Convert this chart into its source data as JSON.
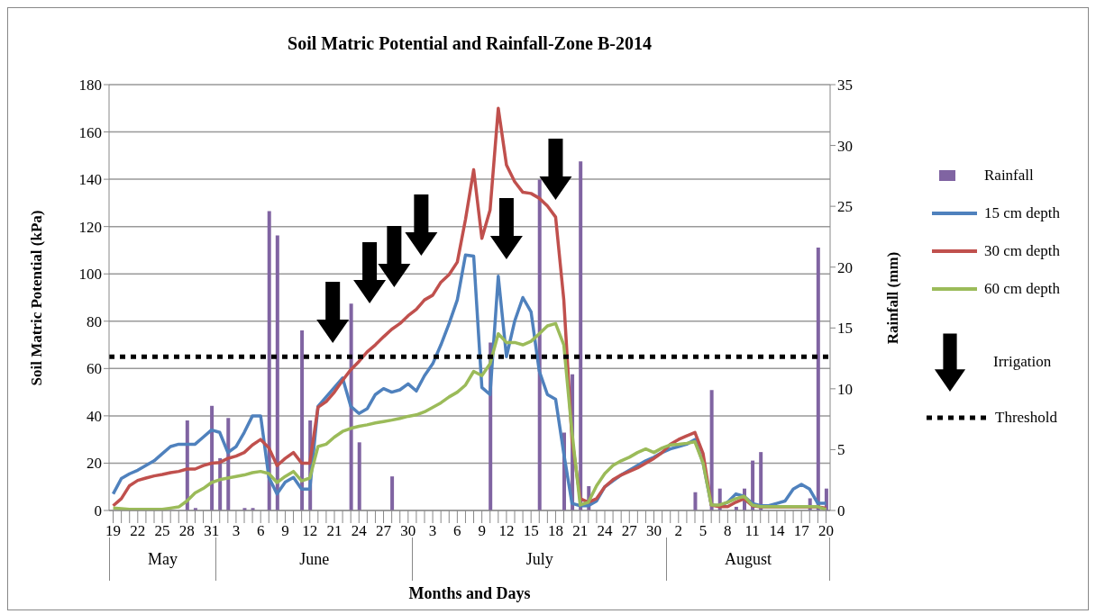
{
  "chart_data": {
    "type": "line",
    "title": "Soil Matric Potential and Rainfall-Zone B-2014",
    "xlabel": "Months and Days",
    "ylabel": "Soil Matric Potential (kPa)",
    "y2label": "Rainfall (mm)",
    "categories": [
      "19",
      null,
      null,
      "22",
      null,
      null,
      "25",
      null,
      null,
      "28",
      null,
      null,
      "31",
      null,
      null,
      "3",
      null,
      null,
      "6",
      null,
      null,
      "9",
      null,
      null,
      "12",
      null,
      null,
      "21",
      null,
      null,
      "24",
      null,
      null,
      "27",
      null,
      null,
      "30",
      null,
      null,
      "3",
      null,
      null,
      "6",
      null,
      null,
      "9",
      null,
      null,
      "12",
      null,
      null,
      "15",
      null,
      null,
      "18",
      null,
      null,
      "21",
      null,
      null,
      "24",
      null,
      null,
      "27",
      null,
      null,
      "30",
      null,
      null,
      "2",
      null,
      null,
      "5",
      null,
      null,
      "8",
      null,
      null,
      "11",
      null,
      null,
      "14",
      null,
      null,
      "17",
      null,
      null,
      "20"
    ],
    "series": [
      {
        "name": "Rainfall",
        "type": "bar",
        "axis": "y2",
        "color": "#8064a2",
        "values": [
          0,
          0,
          0,
          0,
          0,
          0,
          0,
          0,
          0,
          7.4,
          0.2,
          0,
          8.6,
          4.3,
          7.6,
          0,
          0.2,
          0.2,
          0,
          24.6,
          22.6,
          0,
          0,
          14.8,
          7.4,
          0,
          0,
          0,
          0,
          17,
          5.6,
          0,
          0,
          0,
          2.8,
          0,
          0,
          0,
          0,
          0,
          0,
          0,
          0,
          0,
          0,
          0,
          13.8,
          0,
          0,
          0,
          0,
          0,
          27.2,
          0,
          0,
          6.4,
          11.2,
          28.7,
          2,
          0,
          0,
          0,
          0,
          0,
          0,
          0,
          0,
          0,
          0,
          0,
          0,
          1.5,
          0,
          9.9,
          1.8,
          0,
          0.3,
          1.8,
          4.1,
          4.8,
          0,
          0,
          0,
          0,
          0,
          1,
          21.6,
          1.8
        ]
      },
      {
        "name": "15 cm depth",
        "color": "#4f81bd",
        "values": [
          7,
          13.5,
          15.5,
          17,
          19,
          21,
          24,
          27,
          28,
          28,
          28,
          31,
          34,
          33,
          24.5,
          27,
          33,
          40,
          40,
          14,
          7,
          12,
          14,
          9,
          9,
          44,
          48,
          52,
          56,
          44,
          41,
          43,
          49,
          51.5,
          50,
          51,
          53.5,
          50.5,
          57,
          62,
          70,
          79,
          89,
          108,
          107.5,
          52,
          49,
          99,
          65,
          80,
          90,
          84,
          59,
          49,
          47,
          24,
          3,
          2,
          2,
          4,
          10,
          12.5,
          15,
          17,
          19,
          21,
          22.5,
          24.5,
          26,
          27,
          28,
          30,
          20,
          2.3,
          2,
          3.5,
          7,
          6,
          3,
          2,
          2,
          3,
          4,
          9,
          11,
          9,
          3,
          3
        ]
      },
      {
        "name": "30 cm depth",
        "color": "#c0504d",
        "values": [
          2,
          5,
          10.5,
          12.7,
          13.7,
          14.6,
          15.2,
          16,
          16.5,
          17.5,
          17.5,
          19,
          20,
          20.3,
          22,
          23,
          24.5,
          27.7,
          30,
          26.5,
          19,
          22,
          24.5,
          20,
          20,
          43.6,
          46,
          50,
          55,
          59.5,
          63,
          67,
          70,
          73.4,
          76.6,
          79,
          82.3,
          85,
          89,
          91,
          96.5,
          99.7,
          105,
          123,
          144,
          115,
          127,
          170,
          146,
          139,
          134.5,
          134,
          132,
          128.7,
          124,
          89,
          30,
          5,
          3.5,
          5,
          10,
          13,
          15,
          16.5,
          18,
          20,
          22,
          24.5,
          28,
          30,
          31.5,
          33,
          24,
          2.3,
          1.6,
          1.6,
          3.5,
          5,
          2,
          1.5,
          1.5,
          1.5,
          1.5,
          1.5,
          1.5,
          1.5,
          1.5,
          1
        ]
      },
      {
        "name": "60 cm depth",
        "color": "#9bbb59",
        "values": [
          1,
          0.8,
          0.5,
          0.5,
          0.5,
          0.5,
          0.5,
          1,
          1.5,
          4,
          7.4,
          9.3,
          11.8,
          13,
          13.7,
          14.4,
          15,
          16,
          16.5,
          15.6,
          11.8,
          14.4,
          16.5,
          12.5,
          13.7,
          27,
          28,
          31,
          33.4,
          34.7,
          35.6,
          36.2,
          37,
          37.6,
          38.2,
          38.9,
          39.8,
          40.4,
          41.7,
          43.6,
          45.5,
          48,
          50,
          53,
          58.8,
          57,
          62,
          74.7,
          71,
          71,
          70,
          71.5,
          74.7,
          78,
          79,
          70,
          33,
          2.3,
          3.5,
          10.5,
          15.6,
          19,
          21,
          22.5,
          24.5,
          26,
          24.5,
          26.4,
          27.7,
          28,
          28.4,
          29,
          20,
          2.3,
          2.3,
          3.5,
          5,
          6,
          2.3,
          1.6,
          1.6,
          1.6,
          1.6,
          1.6,
          1.6,
          1.6,
          1.6,
          0.4
        ]
      }
    ],
    "ylim": [
      0,
      180
    ],
    "yticks": [
      0,
      20,
      40,
      60,
      80,
      100,
      120,
      140,
      160,
      180
    ],
    "y2lim": [
      0,
      35
    ],
    "y2ticks": [
      0,
      5,
      10,
      15,
      20,
      25,
      30,
      35
    ],
    "ref_lines": [
      {
        "axis": "y",
        "value": 65,
        "label": "Threshold",
        "color": "#000000",
        "line_style": "dotted"
      }
    ],
    "annotations": [
      "May",
      "June",
      "July",
      "August",
      "Irrigation"
    ],
    "grid": "y",
    "legend": "right",
    "marker": "none"
  }
}
